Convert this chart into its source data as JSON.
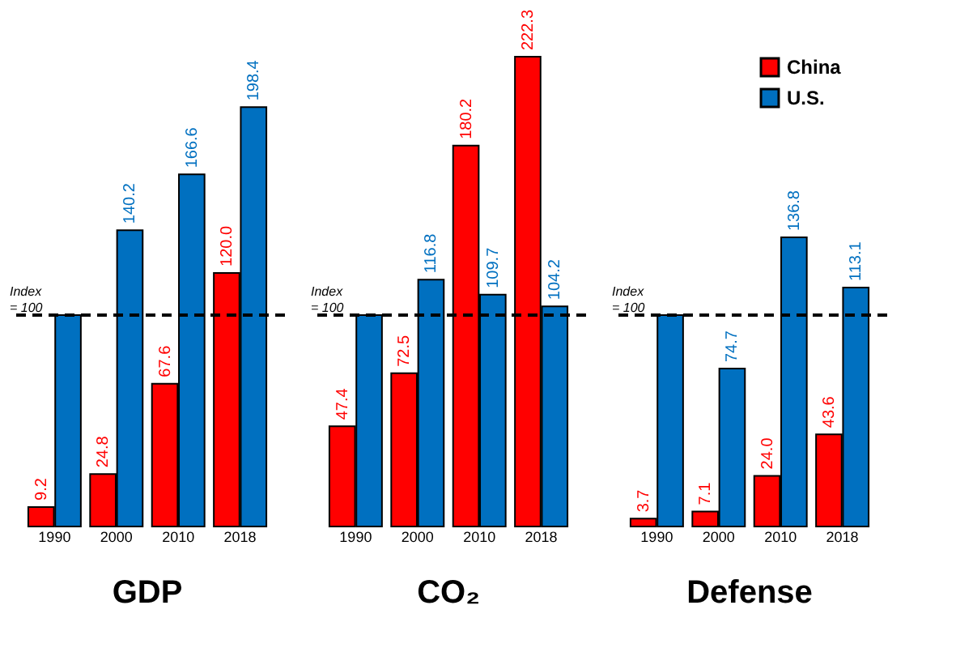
{
  "chart_data": [
    {
      "type": "bar",
      "title": "GDP",
      "categories": [
        "1990",
        "2000",
        "2010",
        "2018"
      ],
      "series": [
        {
          "name": "China",
          "color": "#ff0000",
          "values": [
            9.2,
            24.8,
            67.6,
            120.0
          ],
          "value_labels": [
            "9.2",
            "24.8",
            "67.6",
            "120.0"
          ]
        },
        {
          "name": "U.S.",
          "color": "#0070c0",
          "values": [
            100,
            140.2,
            166.6,
            198.4
          ],
          "value_labels": [
            null,
            "140.2",
            "166.6",
            "198.4"
          ]
        }
      ],
      "tick_labels": "x",
      "grid": false,
      "legend": "top right",
      "ref_lines": [
        {
          "axis": "y",
          "value": 100,
          "label": "Index\n= 100",
          "line_style": "dashed",
          "color": "#000000"
        }
      ]
    },
    {
      "type": "bar",
      "title": "CO₂",
      "categories": [
        "1990",
        "2000",
        "2010",
        "2018"
      ],
      "series": [
        {
          "name": "China",
          "color": "#ff0000",
          "values": [
            47.4,
            72.5,
            180.2,
            222.3
          ],
          "value_labels": [
            "47.4",
            "72.5",
            "180.2",
            "222.3"
          ]
        },
        {
          "name": "U.S.",
          "color": "#0070c0",
          "values": [
            100,
            116.8,
            109.7,
            104.2
          ],
          "value_labels": [
            null,
            "116.8",
            "109.7",
            "104.2"
          ]
        }
      ],
      "tick_labels": "x",
      "grid": false,
      "legend": false,
      "ref_lines": [
        {
          "axis": "y",
          "value": 100,
          "label": "Index\n= 100",
          "line_style": "dashed",
          "color": "#000000"
        }
      ]
    },
    {
      "type": "bar",
      "title": "Defense",
      "categories": [
        "1990",
        "2000",
        "2010",
        "2018"
      ],
      "series": [
        {
          "name": "China",
          "color": "#ff0000",
          "values": [
            3.7,
            7.1,
            24.0,
            43.6
          ],
          "value_labels": [
            "3.7",
            "7.1",
            "24.0",
            "43.6"
          ]
        },
        {
          "name": "U.S.",
          "color": "#0070c0",
          "values": [
            100,
            74.7,
            136.8,
            113.1
          ],
          "value_labels": [
            null,
            "74.7",
            "136.8",
            "113.1"
          ]
        }
      ],
      "tick_labels": "x",
      "grid": false,
      "legend": false,
      "ref_lines": [
        {
          "axis": "y",
          "value": 100,
          "label": "Index\n= 100",
          "line_style": "dashed",
          "color": "#000000"
        }
      ]
    }
  ]
}
